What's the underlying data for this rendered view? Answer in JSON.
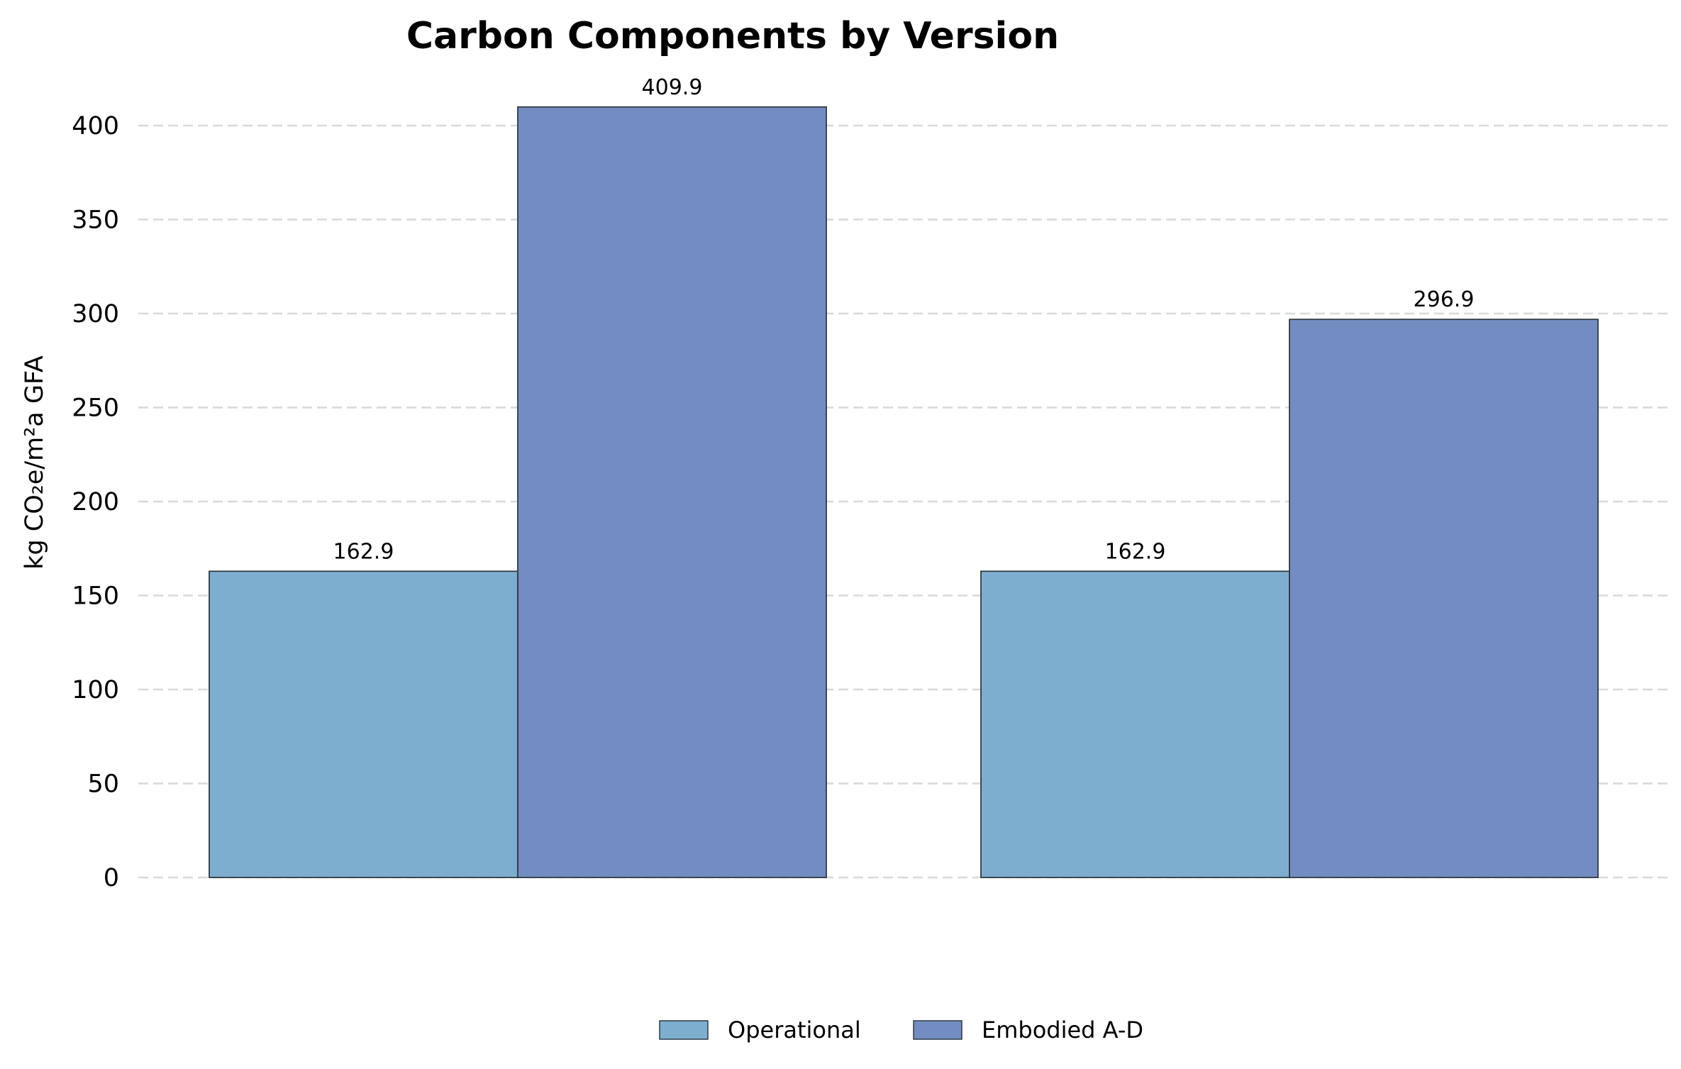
{
  "chart_data": {
    "type": "bar",
    "title": "Carbon Components by Version",
    "ylabel": "kg CO₂e/m²a GFA",
    "xlabel": "",
    "categories": [
      "",
      ""
    ],
    "ylim": [
      0,
      420
    ],
    "yticks": [
      0,
      50,
      100,
      150,
      200,
      250,
      300,
      350,
      400
    ],
    "grid": true,
    "legend_position": "bottom-center",
    "series": [
      {
        "name": "Operational",
        "color": "#7eaecf",
        "values": [
          162.9,
          162.9
        ],
        "labels": [
          "162.9",
          "162.9"
        ]
      },
      {
        "name": "Embodied A-D",
        "color": "#738dc3",
        "values": [
          409.9,
          296.9
        ],
        "labels": [
          "409.9",
          "296.9"
        ]
      }
    ]
  }
}
